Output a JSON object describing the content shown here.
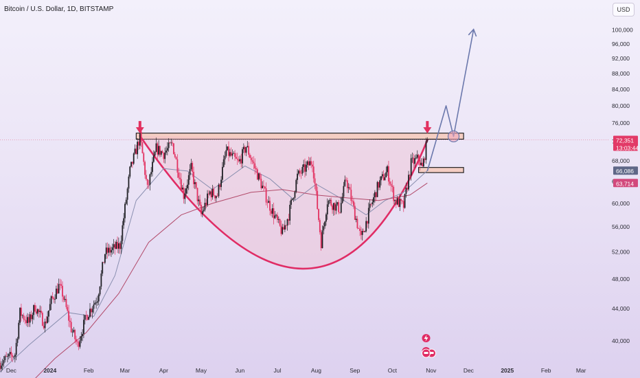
{
  "header": {
    "title": "Bitcoin / U.S. Dollar, 1D, BITSTAMP"
  },
  "currency_button": "USD",
  "price_tags": {
    "last_price": "72,351",
    "countdown": "13:03:44",
    "ma_fast": "66,086",
    "ma_slow": "63,714"
  },
  "colors": {
    "candle_up": "#1f1f24",
    "candle_down": "#e2305f",
    "cup_line": "#e02c65",
    "resistance_fill": "#f6c9ba",
    "projection": "#6b78ac",
    "ma_fast": "#8a8fb0",
    "ma_slow": "#b24a6a",
    "last_price_tag": "#e23a67",
    "ma_fast_tag": "#5f6787",
    "ma_slow_tag": "#d2497c"
  },
  "chart_data": {
    "type": "candlestick",
    "symbol": "Bitcoin / U.S. Dollar",
    "interval": "1D",
    "exchange": "BITSTAMP",
    "y_scale": "log",
    "ylim": [
      37500,
      104500
    ],
    "y_ticks": [
      100000,
      96000,
      92000,
      88000,
      84000,
      80000,
      76000,
      72000,
      68000,
      64000,
      60000,
      56000,
      52000,
      48000,
      44000,
      40000
    ],
    "y_tick_labels": [
      "100,000",
      "96,000",
      "92,000",
      "88,000",
      "84,000",
      "80,000",
      "76,000",
      "72,000",
      "68,000",
      "64,000",
      "60,000",
      "56,000",
      "52,000",
      "48,000",
      "44,000",
      "40,000"
    ],
    "x_range": [
      "2023-11-22",
      "2025-03-24"
    ],
    "x_ticks": [
      {
        "date": "2023-12-01",
        "label": "Dec"
      },
      {
        "date": "2024-01-01",
        "label": "2024"
      },
      {
        "date": "2024-02-01",
        "label": "Feb"
      },
      {
        "date": "2024-03-01",
        "label": "Mar"
      },
      {
        "date": "2024-04-01",
        "label": "Apr"
      },
      {
        "date": "2024-05-01",
        "label": "May"
      },
      {
        "date": "2024-06-01",
        "label": "Jun"
      },
      {
        "date": "2024-07-01",
        "label": "Jul"
      },
      {
        "date": "2024-08-01",
        "label": "Aug"
      },
      {
        "date": "2024-09-01",
        "label": "Sep"
      },
      {
        "date": "2024-10-01",
        "label": "Oct"
      },
      {
        "date": "2024-11-01",
        "label": "Nov"
      },
      {
        "date": "2024-12-01",
        "label": "Dec"
      },
      {
        "date": "2025-01-01",
        "label": "2025"
      },
      {
        "date": "2025-02-01",
        "label": "Feb"
      },
      {
        "date": "2025-03-01",
        "label": "Mar"
      }
    ],
    "price_path": [
      [
        "2023-11-22",
        37500
      ],
      [
        "2023-12-04",
        38500
      ],
      [
        "2023-12-08",
        43500
      ],
      [
        "2023-12-15",
        42200
      ],
      [
        "2023-12-20",
        44300
      ],
      [
        "2023-12-28",
        42000
      ],
      [
        "2024-01-02",
        45000
      ],
      [
        "2024-01-08",
        47000
      ],
      [
        "2024-01-11",
        46000
      ],
      [
        "2024-01-18",
        41500
      ],
      [
        "2024-01-23",
        39500
      ],
      [
        "2024-01-30",
        43000
      ],
      [
        "2024-02-08",
        45500
      ],
      [
        "2024-02-14",
        51800
      ],
      [
        "2024-02-26",
        53000
      ],
      [
        "2024-03-05",
        66000
      ],
      [
        "2024-03-13",
        73000
      ],
      [
        "2024-03-19",
        62500
      ],
      [
        "2024-03-26",
        70500
      ],
      [
        "2024-04-01",
        69500
      ],
      [
        "2024-04-08",
        71500
      ],
      [
        "2024-04-17",
        61500
      ],
      [
        "2024-04-23",
        66500
      ],
      [
        "2024-05-01",
        58000
      ],
      [
        "2024-05-08",
        62000
      ],
      [
        "2024-05-14",
        61500
      ],
      [
        "2024-05-21",
        70000
      ],
      [
        "2024-05-31",
        67500
      ],
      [
        "2024-06-06",
        71000
      ],
      [
        "2024-06-14",
        66000
      ],
      [
        "2024-06-24",
        60000
      ],
      [
        "2024-07-05",
        55000
      ],
      [
        "2024-07-10",
        58000
      ],
      [
        "2024-07-17",
        65000
      ],
      [
        "2024-07-29",
        68000
      ],
      [
        "2024-08-05",
        53500
      ],
      [
        "2024-08-10",
        60500
      ],
      [
        "2024-08-20",
        59000
      ],
      [
        "2024-08-25",
        64500
      ],
      [
        "2024-09-06",
        54000
      ],
      [
        "2024-09-13",
        59000
      ],
      [
        "2024-09-20",
        63500
      ],
      [
        "2024-09-27",
        66000
      ],
      [
        "2024-10-03",
        60500
      ],
      [
        "2024-10-10",
        59500
      ],
      [
        "2024-10-16",
        67500
      ],
      [
        "2024-10-22",
        68500
      ],
      [
        "2024-10-25",
        66500
      ],
      [
        "2024-10-29",
        72351
      ]
    ],
    "ma_fast": [
      [
        "2023-11-22",
        36500
      ],
      [
        "2023-12-15",
        39500
      ],
      [
        "2024-01-15",
        43500
      ],
      [
        "2024-02-05",
        43000
      ],
      [
        "2024-02-22",
        48500
      ],
      [
        "2024-03-10",
        60500
      ],
      [
        "2024-04-01",
        66500
      ],
      [
        "2024-04-20",
        66000
      ],
      [
        "2024-05-10",
        62500
      ],
      [
        "2024-06-05",
        67000
      ],
      [
        "2024-06-25",
        64500
      ],
      [
        "2024-07-15",
        60500
      ],
      [
        "2024-08-01",
        63500
      ],
      [
        "2024-08-20",
        61000
      ],
      [
        "2024-09-10",
        58000
      ],
      [
        "2024-09-25",
        60500
      ],
      [
        "2024-10-10",
        62000
      ],
      [
        "2024-10-29",
        66086
      ]
    ],
    "ma_slow": [
      [
        "2023-12-10",
        34500
      ],
      [
        "2024-01-05",
        38000
      ],
      [
        "2024-01-30",
        41000
      ],
      [
        "2024-02-25",
        46000
      ],
      [
        "2024-03-20",
        53500
      ],
      [
        "2024-04-15",
        58000
      ],
      [
        "2024-05-10",
        60000
      ],
      [
        "2024-06-10",
        62000
      ],
      [
        "2024-07-05",
        62500
      ],
      [
        "2024-08-01",
        61500
      ],
      [
        "2024-08-25",
        61000
      ],
      [
        "2024-09-20",
        60500
      ],
      [
        "2024-10-15",
        61500
      ],
      [
        "2024-10-29",
        63714
      ]
    ],
    "last_price": 72351,
    "countdown": "13:03:44",
    "annotations": {
      "resistance_zone": {
        "from": "2024-03-10",
        "to": "2024-11-27",
        "low": 72500,
        "high": 73800
      },
      "support_zone": {
        "from": "2024-10-22",
        "to": "2024-11-27",
        "low": 65700,
        "high": 66700
      },
      "cup_curve": {
        "start": [
          "2024-03-13",
          73200
        ],
        "bottom": [
          "2024-07-21",
          49500
        ],
        "end": [
          "2024-10-29",
          72300
        ]
      },
      "arrows_down": [
        {
          "date": "2024-03-13",
          "price": 73000
        },
        {
          "date": "2024-10-29",
          "price": 73000
        }
      ],
      "projection_path": [
        [
          "2024-10-29",
          66000
        ],
        [
          "2024-11-13",
          80000
        ],
        [
          "2024-11-19",
          73100
        ],
        [
          "2024-12-05",
          100200
        ]
      ],
      "retest_circle": {
        "date": "2024-11-19",
        "price": 73100
      }
    }
  }
}
